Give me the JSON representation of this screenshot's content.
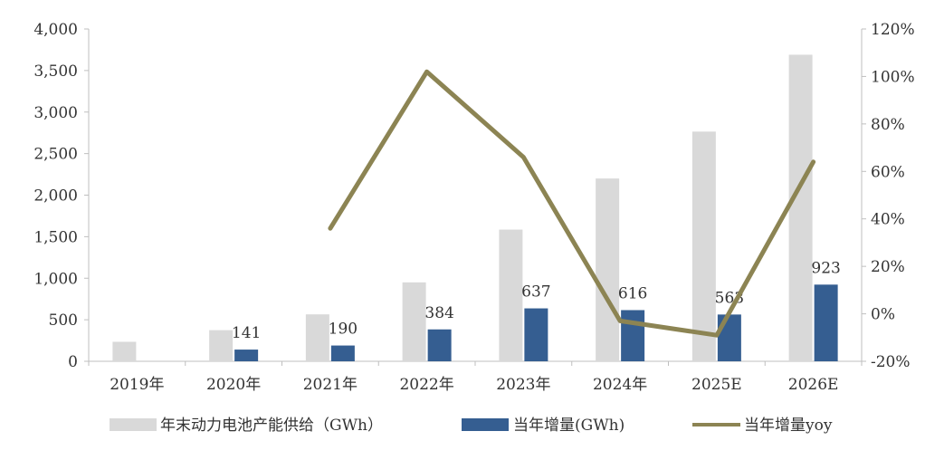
{
  "chart_data": {
    "type": "bar",
    "categories": [
      "2019年",
      "2020年",
      "2021年",
      "2022年",
      "2023年",
      "2024年",
      "2025E",
      "2026E"
    ],
    "series": [
      {
        "name": "年末动力电池产能供给（GWh）",
        "type": "bar",
        "axis": "left",
        "color": "#d9d9d9",
        "values": [
          235,
          375,
          565,
          950,
          1585,
          2200,
          2765,
          3690
        ]
      },
      {
        "name": "当年增量(GWh)",
        "type": "bar",
        "axis": "left",
        "color": "#355e91",
        "values": [
          null,
          141,
          190,
          384,
          637,
          616,
          563,
          923
        ],
        "data_labels": [
          "",
          "141",
          "190",
          "384",
          "637",
          "616",
          "563",
          "923"
        ]
      },
      {
        "name": "当年增量yoy",
        "type": "line",
        "axis": "right",
        "color": "#8c8453",
        "values": [
          null,
          null,
          0.36,
          1.02,
          0.66,
          -0.03,
          -0.09,
          0.64
        ]
      }
    ],
    "y_left": {
      "ylim": [
        0,
        4000
      ],
      "ticks": [
        0,
        500,
        1000,
        1500,
        2000,
        2500,
        3000,
        3500,
        4000
      ],
      "tick_labels": [
        "0",
        "500",
        "1,000",
        "1,500",
        "2,000",
        "2,500",
        "3,000",
        "3,500",
        "4,000"
      ]
    },
    "y_right": {
      "ylim": [
        -0.2,
        1.2
      ],
      "ticks": [
        -0.2,
        0,
        0.2,
        0.4,
        0.6,
        0.8,
        1.0,
        1.2
      ],
      "tick_labels": [
        "-20%",
        "0%",
        "20%",
        "40%",
        "60%",
        "80%",
        "100%",
        "120%"
      ]
    },
    "grid": false,
    "legend_position": "bottom"
  }
}
